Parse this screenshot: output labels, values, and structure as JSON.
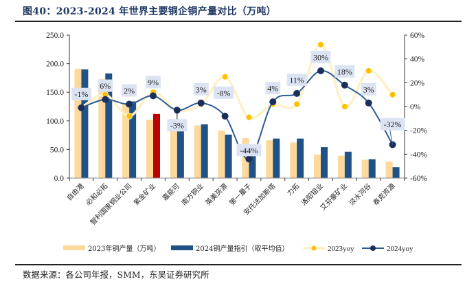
{
  "figure": {
    "title": "图40：2023-2024 年世界主要铜企铜产量对比（万吨）",
    "source": "数据来源：各公司年报，SMM，东吴证券研究所"
  },
  "colors": {
    "bar2023": "#fed99b",
    "bar2024": "#1f5286",
    "bar2024_highlight": "#c00000",
    "line2023": "#fef0c7",
    "marker2023": "#ffc000",
    "line2024": "#2c5c94",
    "marker2024": "#1c2e5c",
    "label_bg": "#dce3f2"
  },
  "chart_data": {
    "type": "bar",
    "title": "2023-2024 年世界主要铜企铜产量对比（万吨）",
    "categories": [
      "自由港",
      "必和必拓",
      "智利国家铜业公司",
      "紫金矿业",
      "嘉能可",
      "南方铜业",
      "英美资源",
      "第一量子",
      "安托法加斯塔",
      "力拓",
      "洛阳钼业",
      "艾芬豪矿业",
      "淡水河谷",
      "泰克资源"
    ],
    "highlight_category": "紫金矿业",
    "series": [
      {
        "name": "2023年铜产量（万吨）",
        "type": "bar",
        "axis": "left",
        "values": [
          191,
          173,
          131,
          102,
          101,
          92,
          83,
          70,
          66,
          62,
          41,
          39,
          32,
          29
        ]
      },
      {
        "name": "2024铜产量指引（取平均值）",
        "type": "bar",
        "axis": "left",
        "values": [
          190,
          183,
          134,
          112,
          98,
          94,
          76,
          39,
          69,
          69,
          54,
          46,
          33,
          19
        ]
      },
      {
        "name": "2023yoy",
        "type": "line",
        "axis": "right",
        "values": [
          -1,
          10,
          -8,
          12,
          -3,
          2,
          25,
          -9,
          2,
          2,
          52,
          0,
          30,
          10
        ]
      },
      {
        "name": "2024yoy",
        "type": "line",
        "axis": "right",
        "values": [
          -1,
          6,
          2,
          9,
          -3,
          3,
          -8,
          -44,
          4,
          11,
          30,
          18,
          3,
          -32
        ],
        "labels": [
          "-1%",
          "6%",
          "2%",
          "9%",
          "-3%",
          "3%",
          "-8%",
          "-44%",
          "4%",
          "11%",
          "30%",
          "18%",
          "3%",
          "-32%"
        ]
      }
    ],
    "left_axis": {
      "ylim": [
        0,
        250
      ],
      "ticks": [
        "0.0",
        "50.0",
        "100.0",
        "150.0",
        "200.0",
        "250.0"
      ]
    },
    "right_axis": {
      "ylim": [
        -60,
        60
      ],
      "ticks": [
        "-60%",
        "-40%",
        "-20%",
        "0%",
        "20%",
        "40%",
        "60%"
      ]
    },
    "xlabel": "",
    "ylabel": "",
    "grid": false,
    "legend": {
      "position": "bottom",
      "entries": [
        "2023年铜产量（万吨）",
        "2024铜产量指引（取平均值）",
        "2023yoy",
        "2024yoy"
      ]
    }
  }
}
